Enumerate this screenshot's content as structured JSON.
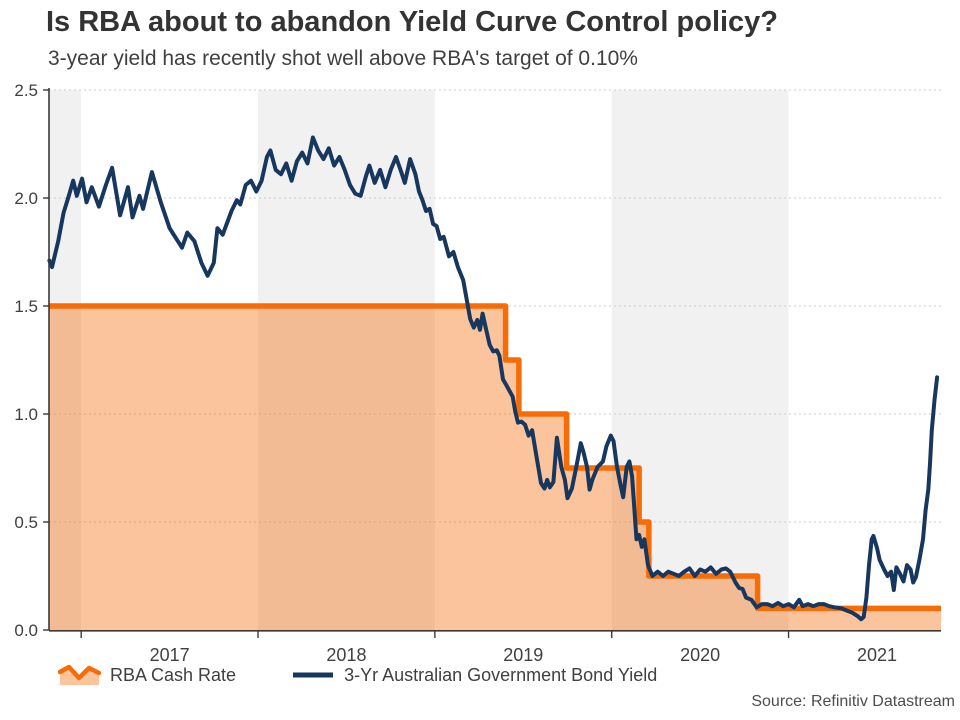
{
  "header": {
    "title": "Is RBA about to abandon Yield Curve Control policy?",
    "subtitle": "3-year yield has recently shot well above RBA's target of 0.10%"
  },
  "source": "Source: Refinitiv Datastream",
  "legend": [
    {
      "label": "RBA Cash Rate",
      "swatch": "area"
    },
    {
      "label": "3-Yr Australian Government Bond Yield",
      "swatch": "line"
    }
  ],
  "colors": {
    "orange": "#F86C07",
    "orange_fill": "rgba(248,108,7,0.40)",
    "navy": "#17375E",
    "band_gray": "#F1F1F1",
    "band_white": "#FFFFFF",
    "grid": "#CCCCCC",
    "axis": "#3A3A3A",
    "tick_text": "#404040"
  },
  "chart_data": {
    "type": "line",
    "title": "Is RBA about to abandon Yield Curve Control policy?",
    "subtitle": "3-year yield has recently shot well above RBA's target of 0.10%",
    "xlabel": "",
    "ylabel": "",
    "x_range": [
      2016.818,
      2021.862
    ],
    "y_range": [
      0,
      2.5
    ],
    "y_ticks": [
      "0.0",
      "0.5",
      "1.0",
      "1.5",
      "2.0",
      "2.5"
    ],
    "x_ticks": [
      2017,
      2018,
      2019,
      2020,
      2021
    ],
    "x_tick_labels": [
      "2017",
      "2018",
      "2019",
      "2020",
      "2021"
    ],
    "gray_band_years": [
      2016,
      2018,
      2020
    ],
    "grid": "dotted-horizontal",
    "legend_position": "bottom",
    "series": [
      {
        "name": "RBA Cash Rate",
        "type": "step-area",
        "steps": [
          [
            2016.818,
            1.5
          ],
          [
            2019.4,
            1.25
          ],
          [
            2019.475,
            1.0
          ],
          [
            2019.745,
            0.75
          ],
          [
            2020.155,
            0.5
          ],
          [
            2020.21,
            0.25
          ],
          [
            2020.825,
            0.1
          ]
        ],
        "end_x": 2021.862
      },
      {
        "name": "3-Yr Australian Government Bond Yield",
        "type": "line",
        "points": [
          [
            2016.82,
            1.71
          ],
          [
            2016.835,
            1.68
          ],
          [
            2016.87,
            1.8
          ],
          [
            2016.9,
            1.93
          ],
          [
            2016.93,
            2.01
          ],
          [
            2016.955,
            2.08
          ],
          [
            2016.975,
            2.01
          ],
          [
            2017.005,
            2.09
          ],
          [
            2017.03,
            1.98
          ],
          [
            2017.06,
            2.05
          ],
          [
            2017.1,
            1.96
          ],
          [
            2017.14,
            2.06
          ],
          [
            2017.175,
            2.14
          ],
          [
            2017.22,
            1.92
          ],
          [
            2017.265,
            2.05
          ],
          [
            2017.29,
            1.91
          ],
          [
            2017.33,
            2.01
          ],
          [
            2017.35,
            1.95
          ],
          [
            2017.4,
            2.12
          ],
          [
            2017.45,
            1.98
          ],
          [
            2017.5,
            1.86
          ],
          [
            2017.57,
            1.77
          ],
          [
            2017.6,
            1.84
          ],
          [
            2017.64,
            1.8
          ],
          [
            2017.68,
            1.7
          ],
          [
            2017.715,
            1.64
          ],
          [
            2017.75,
            1.7
          ],
          [
            2017.77,
            1.86
          ],
          [
            2017.8,
            1.83
          ],
          [
            2017.85,
            1.94
          ],
          [
            2017.88,
            1.99
          ],
          [
            2017.9,
            1.97
          ],
          [
            2017.93,
            2.06
          ],
          [
            2017.96,
            2.08
          ],
          [
            2017.99,
            2.03
          ],
          [
            2018.02,
            2.08
          ],
          [
            2018.05,
            2.19
          ],
          [
            2018.07,
            2.22
          ],
          [
            2018.1,
            2.13
          ],
          [
            2018.13,
            2.11
          ],
          [
            2018.16,
            2.16
          ],
          [
            2018.19,
            2.08
          ],
          [
            2018.22,
            2.17
          ],
          [
            2018.25,
            2.21
          ],
          [
            2018.28,
            2.16
          ],
          [
            2018.31,
            2.28
          ],
          [
            2018.34,
            2.22
          ],
          [
            2018.37,
            2.18
          ],
          [
            2018.4,
            2.23
          ],
          [
            2018.43,
            2.15
          ],
          [
            2018.46,
            2.19
          ],
          [
            2018.49,
            2.13
          ],
          [
            2018.52,
            2.06
          ],
          [
            2018.55,
            2.02
          ],
          [
            2018.58,
            2.01
          ],
          [
            2018.61,
            2.1
          ],
          [
            2018.63,
            2.15
          ],
          [
            2018.66,
            2.07
          ],
          [
            2018.69,
            2.13
          ],
          [
            2018.72,
            2.05
          ],
          [
            2018.75,
            2.13
          ],
          [
            2018.78,
            2.19
          ],
          [
            2018.81,
            2.12
          ],
          [
            2018.83,
            2.07
          ],
          [
            2018.86,
            2.18
          ],
          [
            2018.89,
            2.11
          ],
          [
            2018.91,
            2.03
          ],
          [
            2018.93,
            1.99
          ],
          [
            2018.95,
            1.94
          ],
          [
            2018.97,
            1.95
          ],
          [
            2018.99,
            1.88
          ],
          [
            2019.01,
            1.87
          ],
          [
            2019.03,
            1.81
          ],
          [
            2019.05,
            1.82
          ],
          [
            2019.08,
            1.73
          ],
          [
            2019.105,
            1.75
          ],
          [
            2019.13,
            1.68
          ],
          [
            2019.16,
            1.62
          ],
          [
            2019.18,
            1.53
          ],
          [
            2019.2,
            1.44
          ],
          [
            2019.22,
            1.4
          ],
          [
            2019.24,
            1.435
          ],
          [
            2019.255,
            1.39
          ],
          [
            2019.27,
            1.465
          ],
          [
            2019.29,
            1.39
          ],
          [
            2019.31,
            1.32
          ],
          [
            2019.33,
            1.29
          ],
          [
            2019.35,
            1.295
          ],
          [
            2019.365,
            1.27
          ],
          [
            2019.385,
            1.16
          ],
          [
            2019.4,
            1.14
          ],
          [
            2019.42,
            1.11
          ],
          [
            2019.44,
            1.08
          ],
          [
            2019.455,
            1.01
          ],
          [
            2019.47,
            0.96
          ],
          [
            2019.49,
            0.965
          ],
          [
            2019.51,
            0.95
          ],
          [
            2019.53,
            0.9
          ],
          [
            2019.55,
            0.925
          ],
          [
            2019.575,
            0.8
          ],
          [
            2019.6,
            0.68
          ],
          [
            2019.62,
            0.655
          ],
          [
            2019.635,
            0.695
          ],
          [
            2019.65,
            0.66
          ],
          [
            2019.67,
            0.685
          ],
          [
            2019.69,
            0.89
          ],
          [
            2019.715,
            0.755
          ],
          [
            2019.735,
            0.695
          ],
          [
            2019.75,
            0.61
          ],
          [
            2019.775,
            0.655
          ],
          [
            2019.8,
            0.755
          ],
          [
            2019.825,
            0.865
          ],
          [
            2019.84,
            0.825
          ],
          [
            2019.86,
            0.755
          ],
          [
            2019.875,
            0.65
          ],
          [
            2019.89,
            0.695
          ],
          [
            2019.92,
            0.755
          ],
          [
            2019.95,
            0.78
          ],
          [
            2019.97,
            0.85
          ],
          [
            2019.995,
            0.9
          ],
          [
            2020.01,
            0.875
          ],
          [
            2020.03,
            0.755
          ],
          [
            2020.05,
            0.67
          ],
          [
            2020.065,
            0.615
          ],
          [
            2020.085,
            0.755
          ],
          [
            2020.1,
            0.78
          ],
          [
            2020.115,
            0.71
          ],
          [
            2020.14,
            0.42
          ],
          [
            2020.155,
            0.44
          ],
          [
            2020.17,
            0.385
          ],
          [
            2020.185,
            0.42
          ],
          [
            2020.205,
            0.3
          ],
          [
            2020.23,
            0.25
          ],
          [
            2020.26,
            0.27
          ],
          [
            2020.29,
            0.25
          ],
          [
            2020.32,
            0.27
          ],
          [
            2020.35,
            0.26
          ],
          [
            2020.38,
            0.25
          ],
          [
            2020.41,
            0.27
          ],
          [
            2020.44,
            0.285
          ],
          [
            2020.47,
            0.25
          ],
          [
            2020.5,
            0.28
          ],
          [
            2020.53,
            0.27
          ],
          [
            2020.56,
            0.29
          ],
          [
            2020.59,
            0.26
          ],
          [
            2020.62,
            0.28
          ],
          [
            2020.645,
            0.285
          ],
          [
            2020.67,
            0.27
          ],
          [
            2020.7,
            0.22
          ],
          [
            2020.72,
            0.195
          ],
          [
            2020.74,
            0.19
          ],
          [
            2020.76,
            0.15
          ],
          [
            2020.79,
            0.14
          ],
          [
            2020.82,
            0.105
          ],
          [
            2020.85,
            0.12
          ],
          [
            2020.88,
            0.12
          ],
          [
            2020.91,
            0.11
          ],
          [
            2020.94,
            0.125
          ],
          [
            2020.97,
            0.11
          ],
          [
            2021.0,
            0.12
          ],
          [
            2021.03,
            0.105
          ],
          [
            2021.06,
            0.14
          ],
          [
            2021.08,
            0.11
          ],
          [
            2021.11,
            0.12
          ],
          [
            2021.14,
            0.11
          ],
          [
            2021.17,
            0.12
          ],
          [
            2021.2,
            0.12
          ],
          [
            2021.23,
            0.11
          ],
          [
            2021.26,
            0.105
          ],
          [
            2021.3,
            0.1
          ],
          [
            2021.33,
            0.09
          ],
          [
            2021.36,
            0.08
          ],
          [
            2021.39,
            0.065
          ],
          [
            2021.41,
            0.05
          ],
          [
            2021.425,
            0.06
          ],
          [
            2021.44,
            0.15
          ],
          [
            2021.455,
            0.3
          ],
          [
            2021.47,
            0.42
          ],
          [
            2021.48,
            0.435
          ],
          [
            2021.5,
            0.38
          ],
          [
            2021.515,
            0.325
          ],
          [
            2021.54,
            0.28
          ],
          [
            2021.56,
            0.25
          ],
          [
            2021.58,
            0.27
          ],
          [
            2021.595,
            0.185
          ],
          [
            2021.61,
            0.29
          ],
          [
            2021.63,
            0.26
          ],
          [
            2021.65,
            0.225
          ],
          [
            2021.67,
            0.3
          ],
          [
            2021.69,
            0.28
          ],
          [
            2021.705,
            0.22
          ],
          [
            2021.72,
            0.245
          ],
          [
            2021.74,
            0.325
          ],
          [
            2021.76,
            0.42
          ],
          [
            2021.775,
            0.555
          ],
          [
            2021.79,
            0.65
          ],
          [
            2021.8,
            0.77
          ],
          [
            2021.81,
            0.925
          ],
          [
            2021.825,
            1.065
          ],
          [
            2021.84,
            1.17
          ]
        ]
      }
    ]
  }
}
